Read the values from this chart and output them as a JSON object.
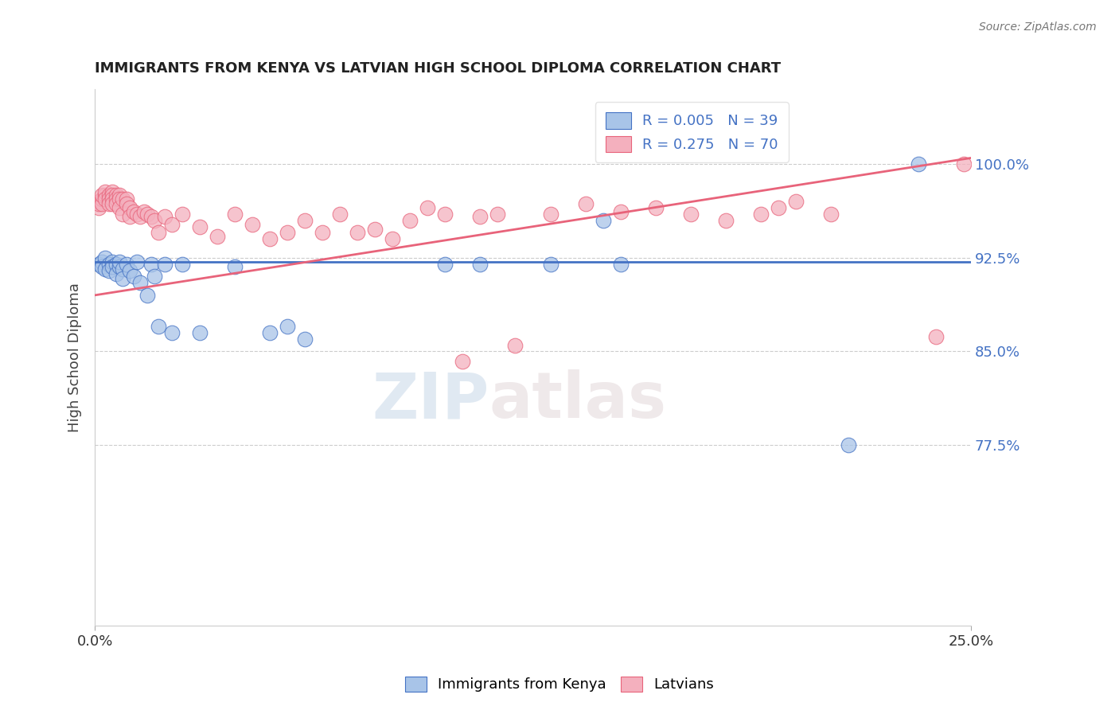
{
  "title": "IMMIGRANTS FROM KENYA VS LATVIAN HIGH SCHOOL DIPLOMA CORRELATION CHART",
  "source": "Source: ZipAtlas.com",
  "ylabel": "High School Diploma",
  "legend_r_blue": "R = 0.005",
  "legend_n_blue": "N = 39",
  "legend_r_pink": "R = 0.275",
  "legend_n_pink": "N = 70",
  "legend_label_blue": "Immigrants from Kenya",
  "legend_label_pink": "Latvians",
  "blue_color": "#a8c4e8",
  "pink_color": "#f4b0be",
  "trendline_blue_color": "#4472c4",
  "trendline_pink_color": "#e8637a",
  "watermark_zip": "ZIP",
  "watermark_atlas": "atlas",
  "xlim": [
    0.0,
    0.25
  ],
  "ylim": [
    0.63,
    1.06
  ],
  "y_tick_values": [
    0.775,
    0.85,
    0.925,
    1.0
  ],
  "y_tick_labels": [
    "77.5%",
    "85.0%",
    "92.5%",
    "100.0%"
  ],
  "x_tick_values": [
    0.0,
    0.25
  ],
  "x_tick_labels": [
    "0.0%",
    "25.0%"
  ],
  "blue_trendline_y0": 0.9215,
  "blue_trendline_y1": 0.9215,
  "pink_trendline_y0": 0.895,
  "pink_trendline_y1": 1.005,
  "blue_scatter_x": [
    0.001,
    0.002,
    0.002,
    0.003,
    0.003,
    0.004,
    0.004,
    0.005,
    0.005,
    0.006,
    0.006,
    0.007,
    0.007,
    0.008,
    0.008,
    0.009,
    0.01,
    0.011,
    0.012,
    0.013,
    0.015,
    0.016,
    0.017,
    0.018,
    0.02,
    0.022,
    0.025,
    0.03,
    0.04,
    0.05,
    0.055,
    0.06,
    0.1,
    0.11,
    0.13,
    0.145,
    0.15,
    0.215,
    0.235
  ],
  "blue_scatter_y": [
    0.92,
    0.922,
    0.918,
    0.925,
    0.916,
    0.92,
    0.915,
    0.922,
    0.918,
    0.92,
    0.912,
    0.918,
    0.922,
    0.916,
    0.908,
    0.92,
    0.915,
    0.91,
    0.922,
    0.905,
    0.895,
    0.92,
    0.91,
    0.87,
    0.92,
    0.865,
    0.92,
    0.865,
    0.918,
    0.865,
    0.87,
    0.86,
    0.92,
    0.92,
    0.92,
    0.955,
    0.92,
    0.775,
    1.0
  ],
  "pink_scatter_x": [
    0.001,
    0.001,
    0.001,
    0.002,
    0.002,
    0.002,
    0.003,
    0.003,
    0.003,
    0.004,
    0.004,
    0.004,
    0.005,
    0.005,
    0.005,
    0.005,
    0.006,
    0.006,
    0.006,
    0.007,
    0.007,
    0.007,
    0.008,
    0.008,
    0.009,
    0.009,
    0.01,
    0.01,
    0.011,
    0.012,
    0.013,
    0.014,
    0.015,
    0.016,
    0.017,
    0.018,
    0.02,
    0.022,
    0.025,
    0.03,
    0.035,
    0.04,
    0.045,
    0.05,
    0.055,
    0.06,
    0.065,
    0.07,
    0.075,
    0.08,
    0.085,
    0.09,
    0.095,
    0.1,
    0.105,
    0.11,
    0.115,
    0.12,
    0.13,
    0.14,
    0.15,
    0.16,
    0.17,
    0.18,
    0.19,
    0.195,
    0.2,
    0.21,
    0.24,
    0.248
  ],
  "pink_scatter_y": [
    0.965,
    0.97,
    0.968,
    0.972,
    0.968,
    0.975,
    0.975,
    0.978,
    0.972,
    0.975,
    0.972,
    0.968,
    0.978,
    0.975,
    0.972,
    0.968,
    0.975,
    0.972,
    0.968,
    0.975,
    0.972,
    0.965,
    0.972,
    0.96,
    0.972,
    0.968,
    0.965,
    0.958,
    0.962,
    0.96,
    0.958,
    0.962,
    0.96,
    0.958,
    0.955,
    0.945,
    0.958,
    0.952,
    0.96,
    0.95,
    0.942,
    0.96,
    0.952,
    0.94,
    0.945,
    0.955,
    0.945,
    0.96,
    0.945,
    0.948,
    0.94,
    0.955,
    0.965,
    0.96,
    0.842,
    0.958,
    0.96,
    0.855,
    0.96,
    0.968,
    0.962,
    0.965,
    0.96,
    0.955,
    0.96,
    0.965,
    0.97,
    0.96,
    0.862,
    1.0
  ]
}
